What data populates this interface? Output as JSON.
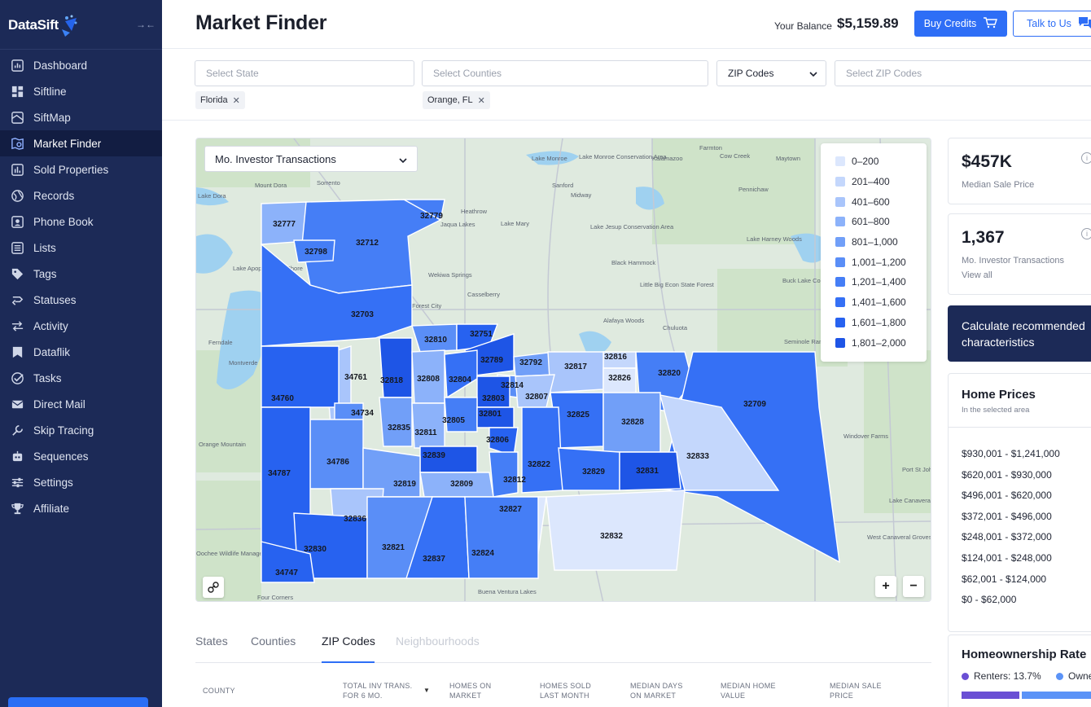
{
  "brand": {
    "name": "DataSift"
  },
  "sidebar": {
    "items": [
      {
        "label": "Dashboard",
        "icon": "chart-bar-icon"
      },
      {
        "label": "Siftline",
        "icon": "grid-icon"
      },
      {
        "label": "SiftMap",
        "icon": "map-icon"
      },
      {
        "label": "Market Finder",
        "icon": "map-search-icon",
        "active": true
      },
      {
        "label": "Sold Properties",
        "icon": "sold-chart-icon"
      },
      {
        "label": "Records",
        "icon": "globe-icon"
      },
      {
        "label": "Phone Book",
        "icon": "phone-book-icon"
      },
      {
        "label": "Lists",
        "icon": "list-icon"
      },
      {
        "label": "Tags",
        "icon": "tag-icon"
      },
      {
        "label": "Statuses",
        "icon": "status-icon"
      },
      {
        "label": "Activity",
        "icon": "swap-arrows-icon"
      },
      {
        "label": "Dataflik",
        "icon": "dataflik-icon"
      },
      {
        "label": "Tasks",
        "icon": "check-circle-icon"
      },
      {
        "label": "Direct Mail",
        "icon": "mail-icon"
      },
      {
        "label": "Skip Tracing",
        "icon": "wrench-icon"
      },
      {
        "label": "Sequences",
        "icon": "robot-icon"
      },
      {
        "label": "Settings",
        "icon": "sliders-icon"
      },
      {
        "label": "Affiliate",
        "icon": "trophy-icon"
      }
    ]
  },
  "header": {
    "title": "Market Finder",
    "balance_label": "Your Balance",
    "balance_value": "$5,159.89",
    "buy_label": "Buy Credits",
    "talk_label": "Talk to Us"
  },
  "filters": {
    "state_placeholder": "Select State",
    "counties_placeholder": "Select Counties",
    "zip_mode": "ZIP Codes",
    "zip_placeholder": "Select ZIP Codes",
    "state_chip": "Florida",
    "county_chip": "Orange, FL"
  },
  "map": {
    "metric": "Mo. Investor Transactions",
    "legend": [
      {
        "label": "0–200",
        "color": "#dce7fd"
      },
      {
        "label": "201–400",
        "color": "#c4d7fc"
      },
      {
        "label": "401–600",
        "color": "#a9c5fb"
      },
      {
        "label": "601–800",
        "color": "#8cb2fa"
      },
      {
        "label": "801–1,000",
        "color": "#719ff8"
      },
      {
        "label": "1,001–1,200",
        "color": "#5a8ef7"
      },
      {
        "label": "1,201–1,400",
        "color": "#457ef6"
      },
      {
        "label": "1,401–1,600",
        "color": "#3570f5"
      },
      {
        "label": "1,601–1,800",
        "color": "#2762f0"
      },
      {
        "label": "1,801–2,000",
        "color": "#1e55e6"
      }
    ],
    "places": [
      "Lake Monroe",
      "Lake Monroe Conservation Area",
      "Farmton",
      "Kalamazoo",
      "Cow Creek",
      "Maytown",
      "Pennichaw",
      "Sorrento",
      "Mount Dora",
      "Lake Dora",
      "Heathrow",
      "Sanford",
      "Midway",
      "Jaqua Lakes",
      "Lake Mary",
      "Lake Jesup Conservation Area",
      "Lake Harney Woods",
      "Black Hammock",
      "Little Big Econ State Forest",
      "Buck Lake Conservation Area",
      "Lake Apopka North Shore",
      "Wekiwa Springs",
      "Casselberry",
      "Forest City",
      "Alafaya Woods",
      "Chuluota",
      "Lake Apopka",
      "Ferndale",
      "Montverde",
      "Seminole Ranch",
      "Orange Mountain",
      "Windover Farms",
      "Port St John",
      "Four Corners",
      "Buena Ventura Lakes",
      "Lake Canaveral Groves",
      "West Canaveral Groves",
      "Oochee Wildlife Management"
    ],
    "zoom_in": "+",
    "zoom_out": "−",
    "zips": [
      {
        "zip": "32777"
      },
      {
        "zip": "32779"
      },
      {
        "zip": "32712"
      },
      {
        "zip": "32798"
      },
      {
        "zip": "32703"
      },
      {
        "zip": "32810"
      },
      {
        "zip": "32751"
      },
      {
        "zip": "32789"
      },
      {
        "zip": "32792"
      },
      {
        "zip": "32816"
      },
      {
        "zip": "32817"
      },
      {
        "zip": "32826"
      },
      {
        "zip": "32820"
      },
      {
        "zip": "32709"
      },
      {
        "zip": "34761"
      },
      {
        "zip": "32818"
      },
      {
        "zip": "32808"
      },
      {
        "zip": "32804"
      },
      {
        "zip": "32814"
      },
      {
        "zip": "32803"
      },
      {
        "zip": "32807"
      },
      {
        "zip": "34760"
      },
      {
        "zip": "34734"
      },
      {
        "zip": "32835"
      },
      {
        "zip": "32811"
      },
      {
        "zip": "32805"
      },
      {
        "zip": "32801"
      },
      {
        "zip": "32806"
      },
      {
        "zip": "32825"
      },
      {
        "zip": "32828"
      },
      {
        "zip": "32833"
      },
      {
        "zip": "32839"
      },
      {
        "zip": "34786"
      },
      {
        "zip": "34787"
      },
      {
        "zip": "32819"
      },
      {
        "zip": "32809"
      },
      {
        "zip": "32812"
      },
      {
        "zip": "32822"
      },
      {
        "zip": "32829"
      },
      {
        "zip": "32831"
      },
      {
        "zip": "32836"
      },
      {
        "zip": "32827"
      },
      {
        "zip": "32832"
      },
      {
        "zip": "32830"
      },
      {
        "zip": "32821"
      },
      {
        "zip": "32837"
      },
      {
        "zip": "32824"
      },
      {
        "zip": "34747"
      }
    ]
  },
  "tabs": [
    {
      "label": "States"
    },
    {
      "label": "Counties"
    },
    {
      "label": "ZIP Codes",
      "active": true
    },
    {
      "label": "Neighbourhoods",
      "disabled": true
    }
  ],
  "table": {
    "columns": [
      "COUNTY",
      "TOTAL INV TRANS. FOR 6 MO.",
      "HOMES ON MARKET",
      "HOMES SOLD LAST MONTH",
      "MEDIAN DAYS ON MARKET",
      "MEDIAN HOME VALUE",
      "MEDIAN SALE PRICE"
    ]
  },
  "stats": {
    "median_sale_price": {
      "value": "$457K",
      "label": "Median Sale Price"
    },
    "investor_transactions": {
      "value": "1,367",
      "label": "Mo. Investor Transactions",
      "link": "View all"
    }
  },
  "calc": {
    "text": "Calculate recommended characteristics"
  },
  "home_prices": {
    "title": "Home Prices",
    "subtitle": "In the selected area",
    "ranges": [
      "$930,001 - $1,241,000",
      "$620,001 - $930,000",
      "$496,001 - $620,000",
      "$372,001 - $496,000",
      "$248,001 - $372,000",
      "$124,001 - $248,000",
      "$62,001 - $124,000",
      "$0 - $62,000"
    ]
  },
  "homeownership": {
    "title": "Homeownership Rate",
    "renters_label": "Renters: 13.7%",
    "renters_rate": 0.137,
    "renters_color": "#6a4fd4",
    "owners_label": "Owners",
    "owners_color": "#5b93f7"
  }
}
